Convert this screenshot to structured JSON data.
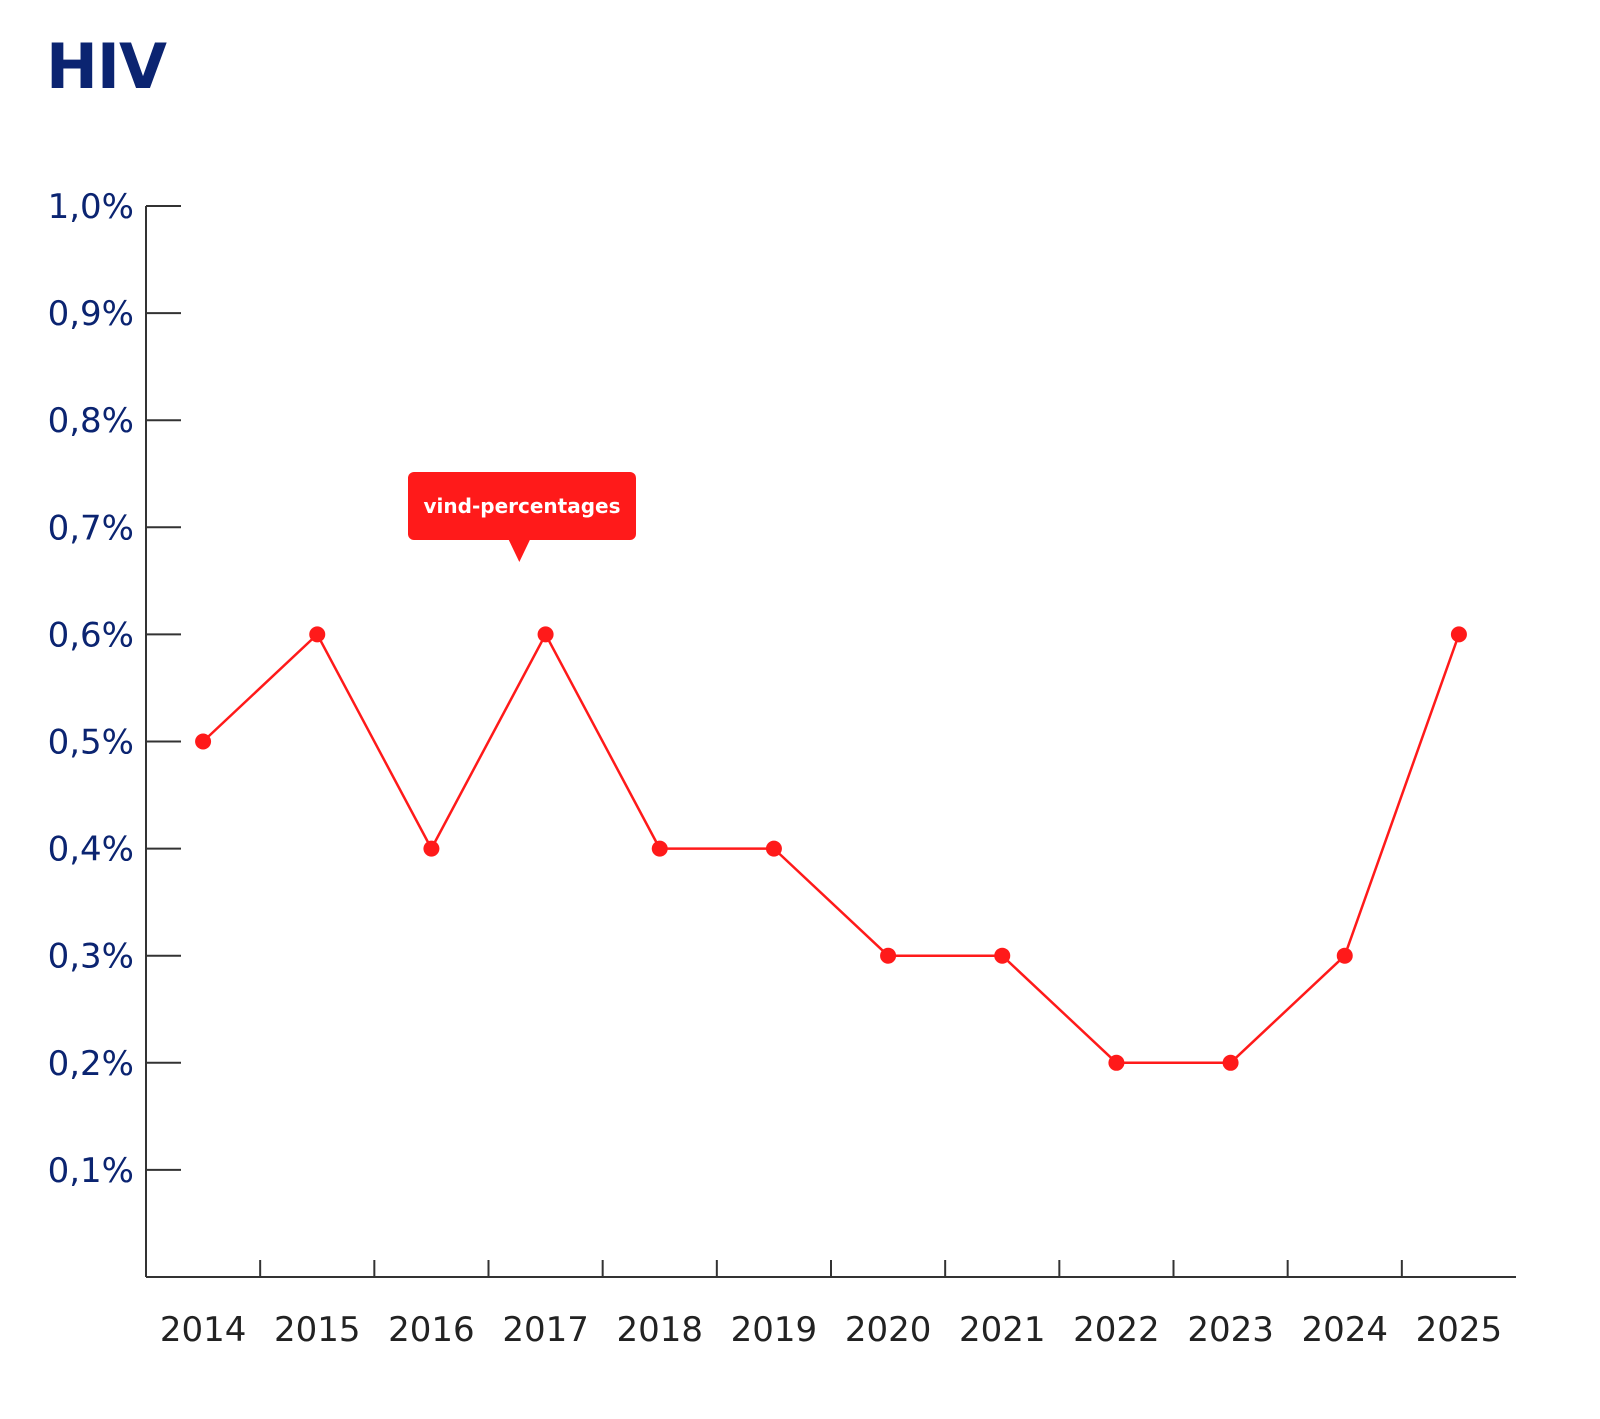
{
  "chart_data": {
    "type": "line",
    "title": "HIV",
    "xlabel": "",
    "ylabel": "",
    "categories": [
      "2014",
      "2015",
      "2016",
      "2017",
      "2018",
      "2019",
      "2020",
      "2021",
      "2022",
      "2023",
      "2024",
      "2025"
    ],
    "series": [
      {
        "values": [
          0.5,
          0.6,
          0.4,
          0.6,
          0.4,
          0.4,
          0.3,
          0.3,
          0.2,
          0.2,
          0.3,
          0.6
        ],
        "color": "#ff1a1a"
      }
    ],
    "ylim": [
      0,
      1.0
    ],
    "yticks": [
      0.1,
      0.2,
      0.3,
      0.4,
      0.5,
      0.6,
      0.7,
      0.8,
      0.9,
      1.0
    ],
    "ytick_labels": [
      "0,1%",
      "0,2%",
      "0,3%",
      "0,4%",
      "0,5%",
      "0,6%",
      "0,7%",
      "0,8%",
      "0,9%",
      "1,0%"
    ],
    "grid": false,
    "annotation": {
      "text": "vind-percentages",
      "color": "#ff1a1a"
    },
    "colors": {
      "title": "#0b2471",
      "ytick_labels": "#0b2471",
      "xtick_labels": "#222222",
      "axis": "#333333"
    }
  }
}
